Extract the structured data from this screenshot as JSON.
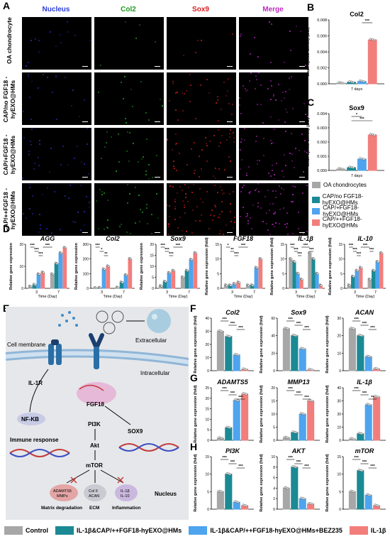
{
  "panels": {
    "A": "A",
    "B": "B",
    "C": "C",
    "D": "D",
    "E": "E",
    "F": "F",
    "G": "G",
    "H": "H"
  },
  "panelA": {
    "headers": [
      {
        "text": "Nucleus",
        "color": "#2b3bd8"
      },
      {
        "text": "Col2",
        "color": "#1f9a1f"
      },
      {
        "text": "Sox9",
        "color": "#d81e1e"
      },
      {
        "text": "Merge",
        "color": "#c02bc0"
      }
    ],
    "rows": [
      "OA chondrocyte",
      "CAP/no FGF18 -hyEXO@HMs",
      "CAP/+FGF18 -hyEXO@HMs",
      "CAP/++FGF18 -hyEXO@HMs"
    ]
  },
  "colors": {
    "gray": "#a7a7a7",
    "teal": "#1b8a94",
    "blue": "#4ea4ee",
    "salmon": "#f27e7c"
  },
  "chart_data": [
    {
      "id": "B",
      "type": "bar",
      "title": "Col2",
      "ylabel": "Mean optical density (a.u.)",
      "xlabel": "7 days",
      "ylim": [
        0,
        0.008
      ],
      "yticks": [
        "0.000",
        "0.002",
        "0.004",
        "0.006",
        "0.008"
      ],
      "values": [
        0.0001,
        0.0002,
        0.0003,
        0.0055
      ],
      "sig": [
        {
          "from": 2,
          "to": 3,
          "label": "***"
        }
      ]
    },
    {
      "id": "C",
      "type": "bar",
      "title": "Sox9",
      "ylabel": "Mean optical density (a.u.)",
      "xlabel": "7 days",
      "ylim": [
        0,
        0.004
      ],
      "yticks": [
        "0.000",
        "0.001",
        "0.002",
        "0.003",
        "0.004"
      ],
      "values": [
        0.0001,
        0.0002,
        0.0008,
        0.0025
      ],
      "sig": [
        {
          "from": 1,
          "to": 2,
          "label": "*"
        },
        {
          "from": 1,
          "to": 3,
          "label": "***"
        }
      ]
    },
    {
      "id": "D1",
      "type": "bar",
      "title": "AGG",
      "ylabel": "Relative gene expression",
      "xlabel": "Time (Day)",
      "ylim": [
        0,
        25
      ],
      "yticks": [
        "0",
        "10",
        "20"
      ],
      "groups": [
        "3",
        "7"
      ],
      "values": [
        [
          1,
          2,
          8,
          9
        ],
        [
          8,
          14,
          20,
          23
        ]
      ],
      "sig": [
        "***",
        "***",
        "***",
        "***"
      ]
    },
    {
      "id": "D2",
      "type": "bar",
      "title": "Col2",
      "ylabel": "Relative gene expression",
      "xlabel": "Time (Day)",
      "ylim": [
        0,
        300
      ],
      "yticks": [
        "0",
        "100",
        "200",
        "300"
      ],
      "groups": [
        "3",
        "7"
      ],
      "values": [
        [
          2,
          3,
          130,
          150
        ],
        [
          5,
          40,
          90,
          200
        ]
      ],
      "sig": [
        "***",
        "*",
        "**"
      ]
    },
    {
      "id": "D3",
      "type": "bar",
      "title": "Sox9",
      "ylabel": "Relative gene expression",
      "xlabel": "Time (Day)",
      "ylim": [
        0,
        20
      ],
      "yticks": [
        "0",
        "5",
        "10",
        "15",
        "20"
      ],
      "groups": [
        "3",
        "7"
      ],
      "values": [
        [
          1,
          3,
          7,
          8
        ],
        [
          5,
          8,
          13,
          16
        ]
      ],
      "sig": [
        "***",
        "***",
        "***",
        "***"
      ]
    },
    {
      "id": "D4",
      "type": "bar",
      "title": "FGF18",
      "ylabel": "Relative gene expression (fold)",
      "xlabel": "Time (Day)",
      "ylim": [
        0,
        15
      ],
      "yticks": [
        "0",
        "5",
        "10",
        "15"
      ],
      "groups": [
        "3",
        "7"
      ],
      "values": [
        [
          1,
          1,
          1.5,
          2
        ],
        [
          1,
          1,
          7,
          10
        ]
      ],
      "sig": [
        "*",
        "**",
        "***",
        "***"
      ]
    },
    {
      "id": "D5",
      "type": "bar",
      "title": "IL-1β",
      "ylabel": "Relative gene expression (fold)",
      "xlabel": "Time (Day)",
      "ylim": [
        0,
        15
      ],
      "yticks": [
        "0",
        "5",
        "10",
        "15"
      ],
      "groups": [
        "3",
        "7"
      ],
      "values": [
        [
          10,
          9,
          5,
          3
        ],
        [
          12,
          10,
          5,
          1
        ]
      ],
      "sig": [
        "***",
        "***",
        "***",
        "***",
        "***"
      ]
    },
    {
      "id": "D6",
      "type": "bar",
      "title": "IL-10",
      "ylabel": "Relative gene expression (fold)",
      "xlabel": "Time (Day)",
      "ylim": [
        0,
        15
      ],
      "yticks": [
        "0",
        "5",
        "10",
        "15"
      ],
      "groups": [
        "3",
        "7"
      ],
      "values": [
        [
          1,
          4,
          6,
          7
        ],
        [
          3,
          6,
          9,
          12
        ]
      ],
      "sig": [
        "***",
        "***",
        "***",
        "***",
        "***"
      ]
    },
    {
      "id": "F1",
      "type": "bar",
      "title": "Col2",
      "ylabel": "Relative gene expression (fold)",
      "ylim": [
        0,
        40
      ],
      "yticks": [
        "0",
        "10",
        "20",
        "30",
        "40"
      ],
      "values": [
        30,
        26,
        12,
        1
      ],
      "sig": [
        "***",
        "***",
        "***"
      ]
    },
    {
      "id": "F2",
      "type": "bar",
      "title": "Sox9",
      "ylabel": "Relative gene expression (fold)",
      "ylim": [
        0,
        60
      ],
      "yticks": [
        "0",
        "20",
        "40",
        "60"
      ],
      "values": [
        48,
        40,
        25,
        1
      ],
      "sig": [
        "***",
        "***",
        "***"
      ]
    },
    {
      "id": "F3",
      "type": "bar",
      "title": "ACAN",
      "ylabel": "Relative gene expression (fold)",
      "ylim": [
        0,
        30
      ],
      "yticks": [
        "0",
        "10",
        "20",
        "30"
      ],
      "values": [
        24,
        20,
        8,
        1
      ],
      "sig": [
        "***",
        "***",
        "***"
      ]
    },
    {
      "id": "G1",
      "type": "bar",
      "title": "ADAMTS5",
      "ylabel": "Relative gene expression (fold)",
      "ylim": [
        0,
        25
      ],
      "yticks": [
        "0",
        "5",
        "10",
        "15",
        "20",
        "25"
      ],
      "values": [
        1,
        6,
        19,
        22
      ],
      "sig": [
        "***",
        "***",
        "***"
      ]
    },
    {
      "id": "G2",
      "type": "bar",
      "title": "MMP13",
      "ylabel": "Relative gene expression (fold)",
      "ylim": [
        0,
        20
      ],
      "yticks": [
        "0",
        "5",
        "10",
        "15",
        "20"
      ],
      "values": [
        1,
        3,
        10,
        15
      ],
      "sig": [
        "***",
        "***",
        "***"
      ]
    },
    {
      "id": "G3",
      "type": "bar",
      "title": "IL-1β",
      "ylabel": "Relative gene expression (fold)",
      "ylim": [
        0,
        40
      ],
      "yticks": [
        "0",
        "10",
        "20",
        "30",
        "40"
      ],
      "values": [
        1,
        5,
        27,
        33
      ],
      "sig": [
        "***",
        "***",
        "**"
      ]
    },
    {
      "id": "H1",
      "type": "bar",
      "title": "PI3K",
      "ylabel": "Relative gene expression (fold)",
      "ylim": [
        0,
        15
      ],
      "yticks": [
        "0",
        "5",
        "10",
        "15"
      ],
      "values": [
        5,
        10,
        2,
        1
      ],
      "sig": [
        "***",
        "***",
        "***"
      ]
    },
    {
      "id": "H2",
      "type": "bar",
      "title": "AKT",
      "ylabel": "Relative gene expression (fold)",
      "ylim": [
        0,
        10
      ],
      "yticks": [
        "0",
        "2",
        "4",
        "6",
        "8",
        "10"
      ],
      "values": [
        4,
        8,
        2,
        1
      ],
      "sig": [
        "***",
        "***",
        "***"
      ]
    },
    {
      "id": "H3",
      "type": "bar",
      "title": "mTOR",
      "ylabel": "Relative gene expression (fold)",
      "ylim": [
        0,
        15
      ],
      "yticks": [
        "0",
        "5",
        "10",
        "15"
      ],
      "values": [
        5,
        11,
        4,
        1
      ],
      "sig": [
        "***",
        "***",
        "***"
      ]
    }
  ],
  "legendBC": [
    "OA chondrocytes",
    "CAP/no FGF18-hyEXO@HMs",
    "CAP/+FGF18-hyEXO@HMs",
    "CAP/++FGF18-hyEXO@HMs"
  ],
  "legendBottom": [
    "Control",
    "IL-1β&CAP/++FGF18-hyEXO@HMs",
    "IL-1β&CAP/++FGF18-hyEXO@HMs+BEZ235",
    "IL-1β"
  ],
  "schematic": {
    "cell_membrane": "Cell membrane",
    "extracellular": "Extracellular",
    "intracellular": "Intracellular",
    "il1r": "IL-1R",
    "nfkb": "NF-KB",
    "immune": "Immune response",
    "fgf18": "FGF18",
    "sox9": "SOX9",
    "pi3k": "PI3K",
    "akt": "Akt",
    "mtor": "mTOR",
    "nucleus": "Nucleus",
    "box1a": "ADAMTS5",
    "box1b": "MMPs",
    "box1c": "Matrix degradation",
    "box2a": "Col II",
    "box2b": "ACAN",
    "box2c": "ECM",
    "box3a": "IL-1β",
    "box3b": "IL-10",
    "box3c": "Inflammation"
  }
}
